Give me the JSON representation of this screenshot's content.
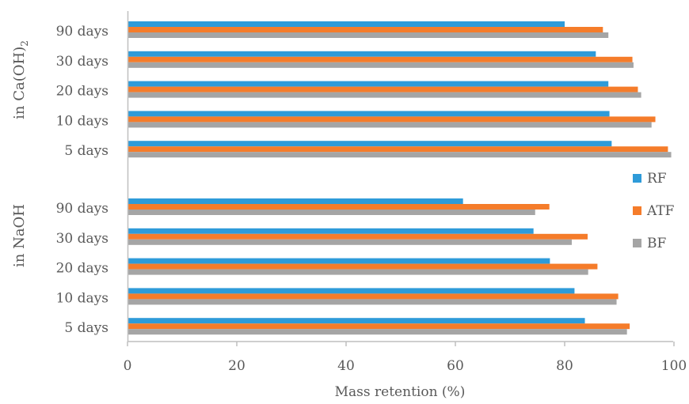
{
  "chart_data": {
    "type": "bar",
    "orientation": "horizontal",
    "xlabel": "Mass retention (%)",
    "xlim": [
      0,
      100
    ],
    "xticks": [
      0,
      20,
      40,
      60,
      80,
      100
    ],
    "grid": false,
    "legend_position": "right",
    "groups": [
      {
        "label": "in Ca(OH)",
        "label_subscript": "2",
        "categories": [
          "90 days",
          "30 days",
          "20 days",
          "10 days",
          "5 days"
        ],
        "series": [
          {
            "name": "RF",
            "values": [
              80,
              85.7,
              88,
              88.2,
              88.6
            ]
          },
          {
            "name": "ATF",
            "values": [
              87,
              92.4,
              93.4,
              96.6,
              98.9
            ]
          },
          {
            "name": "BF",
            "values": [
              88,
              92.6,
              94,
              95.9,
              99.5
            ]
          }
        ]
      },
      {
        "label": "in NaOH",
        "categories": [
          "90 days",
          "30 days",
          "20 days",
          "10 days",
          "5 days"
        ],
        "series": [
          {
            "name": "RF",
            "values": [
              61.4,
              74.3,
              77.3,
              81.8,
              83.7
            ]
          },
          {
            "name": "ATF",
            "values": [
              77.2,
              84.2,
              86,
              89.8,
              91.9
            ]
          },
          {
            "name": "BF",
            "values": [
              74.6,
              81.3,
              84.3,
              89.5,
              91.4
            ]
          }
        ]
      }
    ],
    "legend": [
      {
        "name": "RF",
        "color": "#2e9bd9"
      },
      {
        "name": "ATF",
        "color": "#f57c2a"
      },
      {
        "name": "BF",
        "color": "#a5a5a5"
      }
    ],
    "axis_color": "#bfbfbf",
    "text_color": "#595959"
  }
}
